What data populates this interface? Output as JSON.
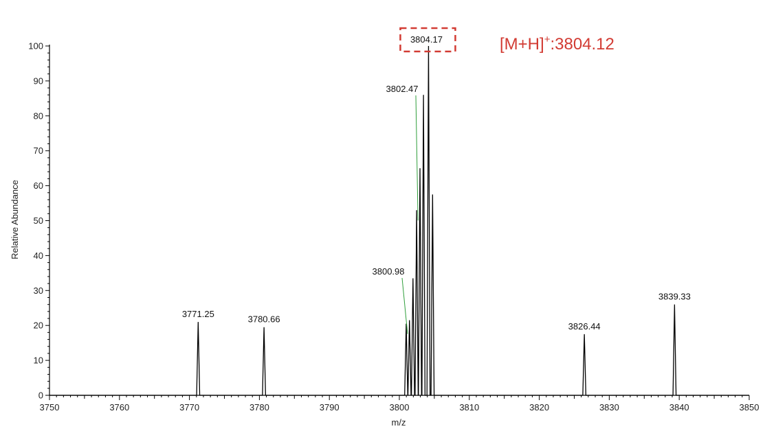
{
  "chart_data": {
    "type": "line",
    "title": "",
    "xlabel": "m/z",
    "ylabel": "Relative Abundance",
    "xlim": [
      3750,
      3850
    ],
    "ylim": [
      0,
      100
    ],
    "x_ticks": [
      "3750",
      "3760",
      "3770",
      "3780",
      "3790",
      "3800",
      "3810",
      "3820",
      "3830",
      "3840",
      "3850"
    ],
    "y_ticks": [
      "0",
      "10",
      "20",
      "30",
      "40",
      "50",
      "60",
      "70",
      "80",
      "90",
      "100"
    ],
    "grid": false,
    "series": [
      {
        "peaks": [
          {
            "mz": 3771.25,
            "intensity": 21
          },
          {
            "mz": 3780.66,
            "intensity": 19.5
          },
          {
            "mz": 3800.98,
            "intensity": 20.5
          },
          {
            "mz": 3801.45,
            "intensity": 21.5
          },
          {
            "mz": 3801.95,
            "intensity": 33.5
          },
          {
            "mz": 3802.47,
            "intensity": 53
          },
          {
            "mz": 3802.95,
            "intensity": 65
          },
          {
            "mz": 3803.45,
            "intensity": 86
          },
          {
            "mz": 3804.17,
            "intensity": 100
          },
          {
            "mz": 3804.75,
            "intensity": 57.5
          },
          {
            "mz": 3826.44,
            "intensity": 17.5
          },
          {
            "mz": 3839.33,
            "intensity": 26
          }
        ]
      }
    ],
    "peak_labels": [
      {
        "text": "3771.25",
        "mz": 3771.25,
        "intensity": 21
      },
      {
        "text": "3780.66",
        "mz": 3780.66,
        "intensity": 19.5
      },
      {
        "text": "3800.98",
        "mz": 3800.98,
        "intensity": 20.5,
        "leader": true
      },
      {
        "text": "3802.47",
        "mz": 3802.47,
        "intensity": 53,
        "leader": true
      },
      {
        "text": "3804.17",
        "mz": 3804.17,
        "intensity": 100,
        "boxed": true
      },
      {
        "text": "3826.44",
        "mz": 3826.44,
        "intensity": 17.5
      },
      {
        "text": "3839.33",
        "mz": 3839.33,
        "intensity": 26
      }
    ],
    "annotation": {
      "prefix": "[M+H]",
      "superscript": "+",
      "suffix": ":3804.12",
      "color": "#d23b33"
    },
    "colors": {
      "trace": "#000000",
      "leader": "#2e9e3a",
      "highlight": "#d23b33"
    }
  }
}
